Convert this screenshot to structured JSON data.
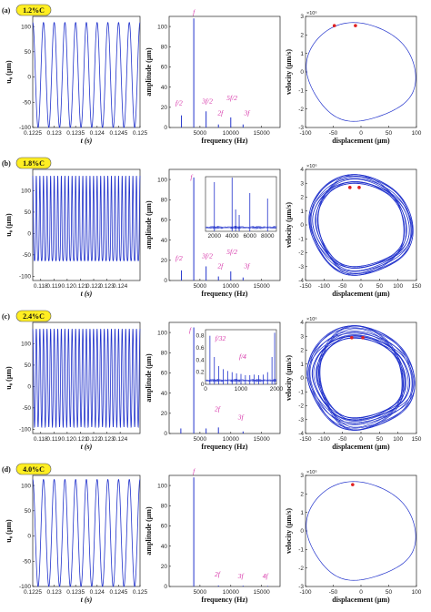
{
  "chart_data": [
    {
      "panel": "(a)",
      "badge": "1.2%C",
      "time_series": {
        "type": "line",
        "xlabel": "t (s)",
        "ylabel": "u₀ (μm)",
        "xlim": [
          0.1225,
          0.125
        ],
        "ylim": [
          -100,
          120
        ],
        "xticks": [
          "0.1225",
          "0.123",
          "0.1235",
          "0.124",
          "0.1245",
          "0.125"
        ],
        "yticks": [
          "-100",
          "-50",
          "0",
          "50",
          "100"
        ],
        "cycles": 10,
        "amp_max": 108,
        "amp_min": -100,
        "sub_peaks": false
      },
      "spectrum": {
        "type": "bar",
        "xlabel": "frequency (Hz)",
        "ylabel": "amplitude (μm)",
        "xlim": [
          0,
          18000
        ],
        "ylim": [
          0,
          110
        ],
        "xticks": [
          "5000",
          "10000",
          "15000"
        ],
        "yticks": [
          "0",
          "20",
          "40",
          "60",
          "80",
          "100"
        ],
        "peaks": [
          {
            "f": 2000,
            "a": 12
          },
          {
            "f": 4000,
            "a": 108
          },
          {
            "f": 6000,
            "a": 16
          },
          {
            "f": 8000,
            "a": 3
          },
          {
            "f": 10000,
            "a": 10
          },
          {
            "f": 12000,
            "a": 3
          }
        ],
        "labels": [
          {
            "text": "f",
            "f": 4000,
            "a": 112
          },
          {
            "text": "f/2",
            "f": 1600,
            "a": 22
          },
          {
            "text": "3f/2",
            "f": 6200,
            "a": 24
          },
          {
            "text": "2f",
            "f": 8300,
            "a": 12
          },
          {
            "text": "5f/2",
            "f": 10200,
            "a": 27
          },
          {
            "text": "3f",
            "f": 12600,
            "a": 12
          }
        ]
      },
      "phase": {
        "type": "line",
        "xlabel": "displacement (μm)",
        "ylabel": "velocity (μm/s)",
        "exponent": "×10⁶",
        "xlim": [
          -100,
          100
        ],
        "ylim": [
          -3,
          3
        ],
        "xticks": [
          "-100",
          "-50",
          "0",
          "50",
          "100"
        ],
        "yticks": [
          "-3",
          "-2",
          "-1",
          "0",
          "1",
          "2",
          "3"
        ],
        "loops": 1,
        "jitter": 0,
        "marker_x": [
          -48,
          -10
        ],
        "marker_y": 2.5
      }
    },
    {
      "panel": "(b)",
      "badge": "1.8%C",
      "time_series": {
        "type": "line",
        "xlabel": "t (s)",
        "ylabel": "u₀ (μm)",
        "xlim": [
          0.1174,
          0.1255
        ],
        "ylim": [
          -110,
          150
        ],
        "xticks": [
          "0.118",
          "0.119",
          "0.12",
          "0.121",
          "0.122",
          "0.123",
          "0.124"
        ],
        "yticks": [
          "-100",
          "-50",
          "0",
          "50",
          "100"
        ],
        "cycles": 30,
        "amp_max": 135,
        "amp_min": -100,
        "sub_peaks": true
      },
      "spectrum": {
        "type": "bar",
        "xlabel": "frequency (Hz)",
        "ylabel": "amplitude (μm)",
        "xlim": [
          0,
          18000
        ],
        "ylim": [
          0,
          110
        ],
        "xticks": [
          "5000",
          "10000",
          "15000"
        ],
        "yticks": [
          "0",
          "20",
          "40",
          "60",
          "80",
          "100"
        ],
        "peaks": [
          {
            "f": 2000,
            "a": 10
          },
          {
            "f": 4000,
            "a": 102
          },
          {
            "f": 6000,
            "a": 14
          },
          {
            "f": 8000,
            "a": 4
          },
          {
            "f": 10000,
            "a": 9
          },
          {
            "f": 12000,
            "a": 3
          }
        ],
        "labels": [
          {
            "text": "f",
            "f": 3600,
            "a": 100
          },
          {
            "text": "f/2",
            "f": 1600,
            "a": 20
          },
          {
            "text": "3f/2",
            "f": 6200,
            "a": 22
          },
          {
            "text": "2f",
            "f": 8300,
            "a": 12
          },
          {
            "text": "5f/2",
            "f": 10200,
            "a": 26
          },
          {
            "text": "3f",
            "f": 12600,
            "a": 12
          }
        ],
        "inset": {
          "xlim": [
            1000,
            9000
          ],
          "xticks": [
            "2000",
            "4000",
            "6000",
            "8000"
          ],
          "ylim": [
            0,
            10
          ],
          "peaks": [
            {
              "f": 2000,
              "a": 9
            },
            {
              "f": 4000,
              "a": 10
            },
            {
              "f": 6000,
              "a": 7
            },
            {
              "f": 8000,
              "a": 6
            },
            {
              "f": 4400,
              "a": 4
            },
            {
              "f": 4800,
              "a": 3
            }
          ]
        }
      },
      "phase": {
        "type": "line",
        "xlabel": "displacement (μm)",
        "ylabel": "velocity (μm/s)",
        "exponent": "×10⁶",
        "xlim": [
          -150,
          150
        ],
        "ylim": [
          -4,
          4
        ],
        "xticks": [
          "-150",
          "-100",
          "-50",
          "0",
          "50",
          "100",
          "150"
        ],
        "yticks": [
          "-4",
          "-3",
          "-2",
          "-1",
          "0",
          "1",
          "2",
          "3",
          "4"
        ],
        "loops": 12,
        "jitter": 0.1,
        "marker_x": [
          -30,
          -5
        ],
        "marker_y": 2.7
      }
    },
    {
      "panel": "(c)",
      "badge": "2.4%C",
      "time_series": {
        "type": "line",
        "xlabel": "t (s)",
        "ylabel": "u₀ (μm)",
        "xlim": [
          0.1174,
          0.1255
        ],
        "ylim": [
          -110,
          150
        ],
        "xticks": [
          "0.118",
          "0.119",
          "0.12",
          "0.121",
          "0.122",
          "0.123",
          "0.124"
        ],
        "yticks": [
          "-100",
          "-50",
          "0",
          "50",
          "100"
        ],
        "cycles": 30,
        "amp_max": 135,
        "amp_min": -95,
        "sub_peaks": false
      },
      "spectrum": {
        "type": "bar",
        "xlabel": "frequency (Hz)",
        "ylabel": "amplitude (μm)",
        "xlim": [
          0,
          18000
        ],
        "ylim": [
          0,
          110
        ],
        "xticks": [
          "5000",
          "10000",
          "15000"
        ],
        "yticks": [
          "0",
          "20",
          "40",
          "60",
          "80",
          "100"
        ],
        "peaks": [
          {
            "f": 4000,
            "a": 105
          },
          {
            "f": 1900,
            "a": 5
          },
          {
            "f": 6000,
            "a": 5
          },
          {
            "f": 8000,
            "a": 6
          },
          {
            "f": 12000,
            "a": 2
          }
        ],
        "labels": [
          {
            "text": "f",
            "f": 3400,
            "a": 100
          },
          {
            "text": "2f",
            "f": 7800,
            "a": 22
          },
          {
            "text": "3f",
            "f": 11600,
            "a": 14
          }
        ],
        "inset": {
          "xlim": [
            0,
            2000
          ],
          "xticks": [
            "0",
            "1000",
            "2000"
          ],
          "yticks": [
            "0",
            "0.2",
            "0.4",
            "0.6",
            "0.8"
          ],
          "ylim": [
            0,
            0.9
          ],
          "peaks": [
            {
              "f": 125,
              "a": 0.8
            },
            {
              "f": 250,
              "a": 0.45
            },
            {
              "f": 375,
              "a": 0.3
            },
            {
              "f": 500,
              "a": 0.25
            },
            {
              "f": 625,
              "a": 0.22
            },
            {
              "f": 750,
              "a": 0.2
            },
            {
              "f": 875,
              "a": 0.18
            },
            {
              "f": 1000,
              "a": 0.17
            },
            {
              "f": 1125,
              "a": 0.15
            },
            {
              "f": 1250,
              "a": 0.15
            },
            {
              "f": 1375,
              "a": 0.16
            },
            {
              "f": 1500,
              "a": 0.15
            },
            {
              "f": 1625,
              "a": 0.16
            },
            {
              "f": 1750,
              "a": 0.2
            },
            {
              "f": 1875,
              "a": 0.45
            },
            {
              "f": 1950,
              "a": 0.85
            }
          ],
          "labels": [
            {
              "text": "f/32",
              "f": 420,
              "a": 0.72
            },
            {
              "text": "f/4",
              "f": 1050,
              "a": 0.42
            }
          ]
        }
      },
      "phase": {
        "type": "line",
        "xlabel": "displacement (μm)",
        "ylabel": "velocity (μm/s)",
        "exponent": "×10⁶",
        "xlim": [
          -150,
          150
        ],
        "ylim": [
          -4,
          4
        ],
        "xticks": [
          "-150",
          "-100",
          "-50",
          "0",
          "50",
          "100",
          "150"
        ],
        "yticks": [
          "-4",
          "-3",
          "-2",
          "-1",
          "0",
          "1",
          "2",
          "3",
          "4"
        ],
        "loops": 16,
        "jitter": 0.14,
        "marker_x": [
          -25,
          5
        ],
        "marker_y": 2.9
      }
    },
    {
      "panel": "(d)",
      "badge": "4.0%C",
      "time_series": {
        "type": "line",
        "xlabel": "t (s)",
        "ylabel": "u₀ (μm)",
        "xlim": [
          0.1225,
          0.125
        ],
        "ylim": [
          -100,
          120
        ],
        "xticks": [
          "0.1225",
          "0.123",
          "0.1235",
          "0.124",
          "0.1245",
          "0.125"
        ],
        "yticks": [
          "-100",
          "-50",
          "0",
          "50",
          "100"
        ],
        "cycles": 10,
        "amp_max": 112,
        "amp_min": -100,
        "sub_peaks": false
      },
      "spectrum": {
        "type": "bar",
        "xlabel": "frequency (Hz)",
        "ylabel": "amplitude (μm)",
        "xlim": [
          0,
          18000
        ],
        "ylim": [
          0,
          110
        ],
        "xticks": [
          "5000",
          "10000",
          "15000"
        ],
        "yticks": [
          "0",
          "20",
          "40",
          "60",
          "80",
          "100"
        ],
        "peaks": [
          {
            "f": 4000,
            "a": 108
          },
          {
            "f": 8000,
            "a": 1
          },
          {
            "f": 12000,
            "a": 0.8
          },
          {
            "f": 16000,
            "a": 0.6
          }
        ],
        "labels": [
          {
            "text": "f",
            "f": 4000,
            "a": 112
          },
          {
            "text": "2f",
            "f": 7800,
            "a": 10
          },
          {
            "text": "3f",
            "f": 11600,
            "a": 8
          },
          {
            "text": "4f",
            "f": 15600,
            "a": 8
          }
        ]
      },
      "phase": {
        "type": "line",
        "xlabel": "displacement (μm)",
        "ylabel": "velocity (μm/s)",
        "exponent": "×10⁶",
        "xlim": [
          -100,
          100
        ],
        "ylim": [
          -3,
          3
        ],
        "xticks": [
          "-100",
          "-50",
          "0",
          "50",
          "100"
        ],
        "yticks": [
          "-3",
          "-2",
          "-1",
          "0",
          "1",
          "2",
          "3"
        ],
        "loops": 1,
        "jitter": 0,
        "marker_x": [
          -15
        ],
        "marker_y": 2.5
      }
    }
  ],
  "colors": {
    "line": "#2233cc",
    "annotation": "#d633a8",
    "marker": "#e02020",
    "badge_fill": "#ffee22"
  }
}
